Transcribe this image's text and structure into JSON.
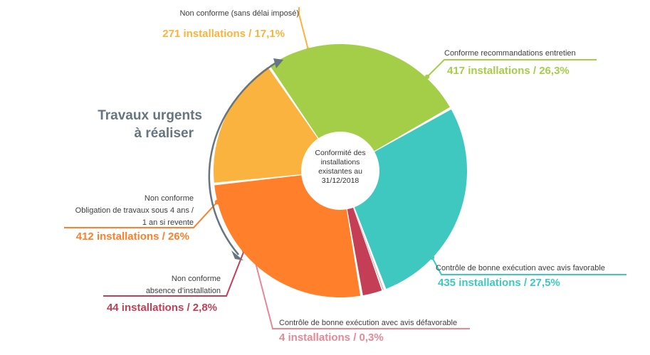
{
  "chart_data": {
    "type": "pie",
    "variant": "donut",
    "center_label": [
      "Conformité des",
      "installations",
      "existantes au",
      "31/12/2018"
    ],
    "side_note": [
      "Travaux urgents",
      "à réaliser"
    ],
    "slices": [
      {
        "category": [
          "Non conforme (sans délai imposé)"
        ],
        "value_text": "271 installations / 17,1%",
        "count": 271,
        "percent": 17.1,
        "color": "#fbb33f"
      },
      {
        "category": [
          "Conforme recommandations entretien"
        ],
        "value_text": "417 installations / 26,3%",
        "count": 417,
        "percent": 26.3,
        "color": "#a5ce48"
      },
      {
        "category": [
          "Contrôle de bonne exécution avec avis favorable"
        ],
        "value_text": "435 installations / 27,5%",
        "count": 435,
        "percent": 27.5,
        "color": "#3fc8c0"
      },
      {
        "category": [
          "Contrôle de bonne exécution avec avis défavorable"
        ],
        "value_text": "4 installations / 0,3%",
        "count": 4,
        "percent": 0.3,
        "color": "#e58898"
      },
      {
        "category": [
          "Non conforme",
          "absence d’installation"
        ],
        "value_text": "44 installations  / 2,8%",
        "count": 44,
        "percent": 2.8,
        "color": "#c43f55"
      },
      {
        "category": [
          "Non conforme",
          "Obligation de travaux sous 4 ans /",
          "1 an si revente"
        ],
        "value_text": "412 installations / 26%",
        "count": 412,
        "percent": 26,
        "color": "#ff7f2a"
      }
    ]
  }
}
